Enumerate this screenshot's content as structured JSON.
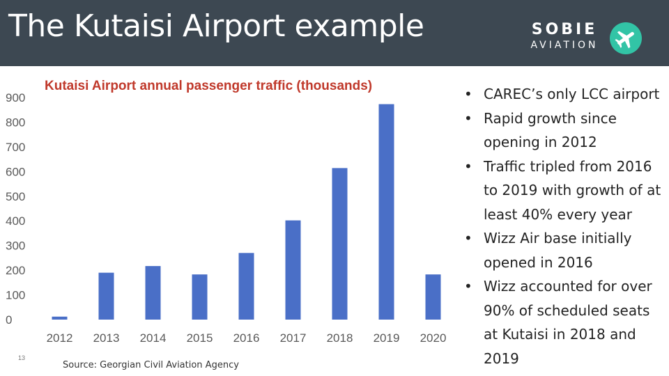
{
  "slide": {
    "title": "The Kutaisi Airport example",
    "logo_top": "SOBIE",
    "logo_bottom": "AVIATION",
    "logo_icon": "airplane-icon",
    "slide_number": "13",
    "source": "Source: Georgian Civil Aviation Agency"
  },
  "bullets": [
    "CAREC’s only LCC airport",
    "Rapid growth since opening in 2012",
    "Traffic tripled from 2016 to 2019 with growth of at least 40% every year",
    "Wizz Air base initially opened in 2016",
    "Wizz accounted for over 90% of scheduled seats at Kutaisi in 2018 and 2019"
  ],
  "chart_data": {
    "type": "bar",
    "title": "Kutaisi Airport annual passenger traffic (thousands)",
    "categories": [
      "2012",
      "2013",
      "2014",
      "2015",
      "2016",
      "2017",
      "2018",
      "2019",
      "2020"
    ],
    "values": [
      12,
      190,
      217,
      183,
      270,
      402,
      614,
      873,
      183
    ],
    "ylim": [
      0,
      900
    ],
    "yticks": [
      0,
      100,
      200,
      300,
      400,
      500,
      600,
      700,
      800,
      900
    ],
    "grid": false,
    "bar_color": "#4a6fc7"
  }
}
